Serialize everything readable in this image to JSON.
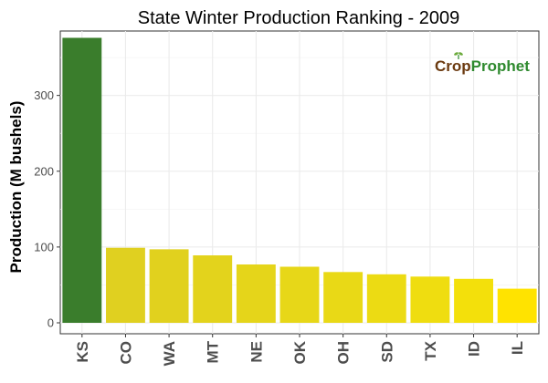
{
  "chart_data": {
    "type": "bar",
    "title": "State Winter  Production Ranking - 2009",
    "xlabel": "",
    "ylabel": "Production (M bushels)",
    "categories": [
      "KS",
      "CO",
      "WA",
      "MT",
      "NE",
      "OK",
      "OH",
      "SD",
      "TX",
      "ID",
      "IL"
    ],
    "values": [
      376,
      99,
      97,
      89,
      77,
      74,
      67,
      64,
      61,
      58,
      45
    ],
    "ylim": [
      0,
      385
    ],
    "yticks": [
      0,
      100,
      200,
      300
    ],
    "grid": true,
    "legend": "none",
    "colors": [
      "#3a7d2c",
      "#e0d020",
      "#e1d11e",
      "#e3d31c",
      "#e5d51a",
      "#e7d718",
      "#e9d916",
      "#ecdb13",
      "#efdd10",
      "#f3e00b",
      "#ffe300"
    ]
  },
  "logo": {
    "part1": "Crop",
    "part2": "Prophet",
    "crop_color": "#6b3a10",
    "prophet_color": "#2f8a2f"
  }
}
